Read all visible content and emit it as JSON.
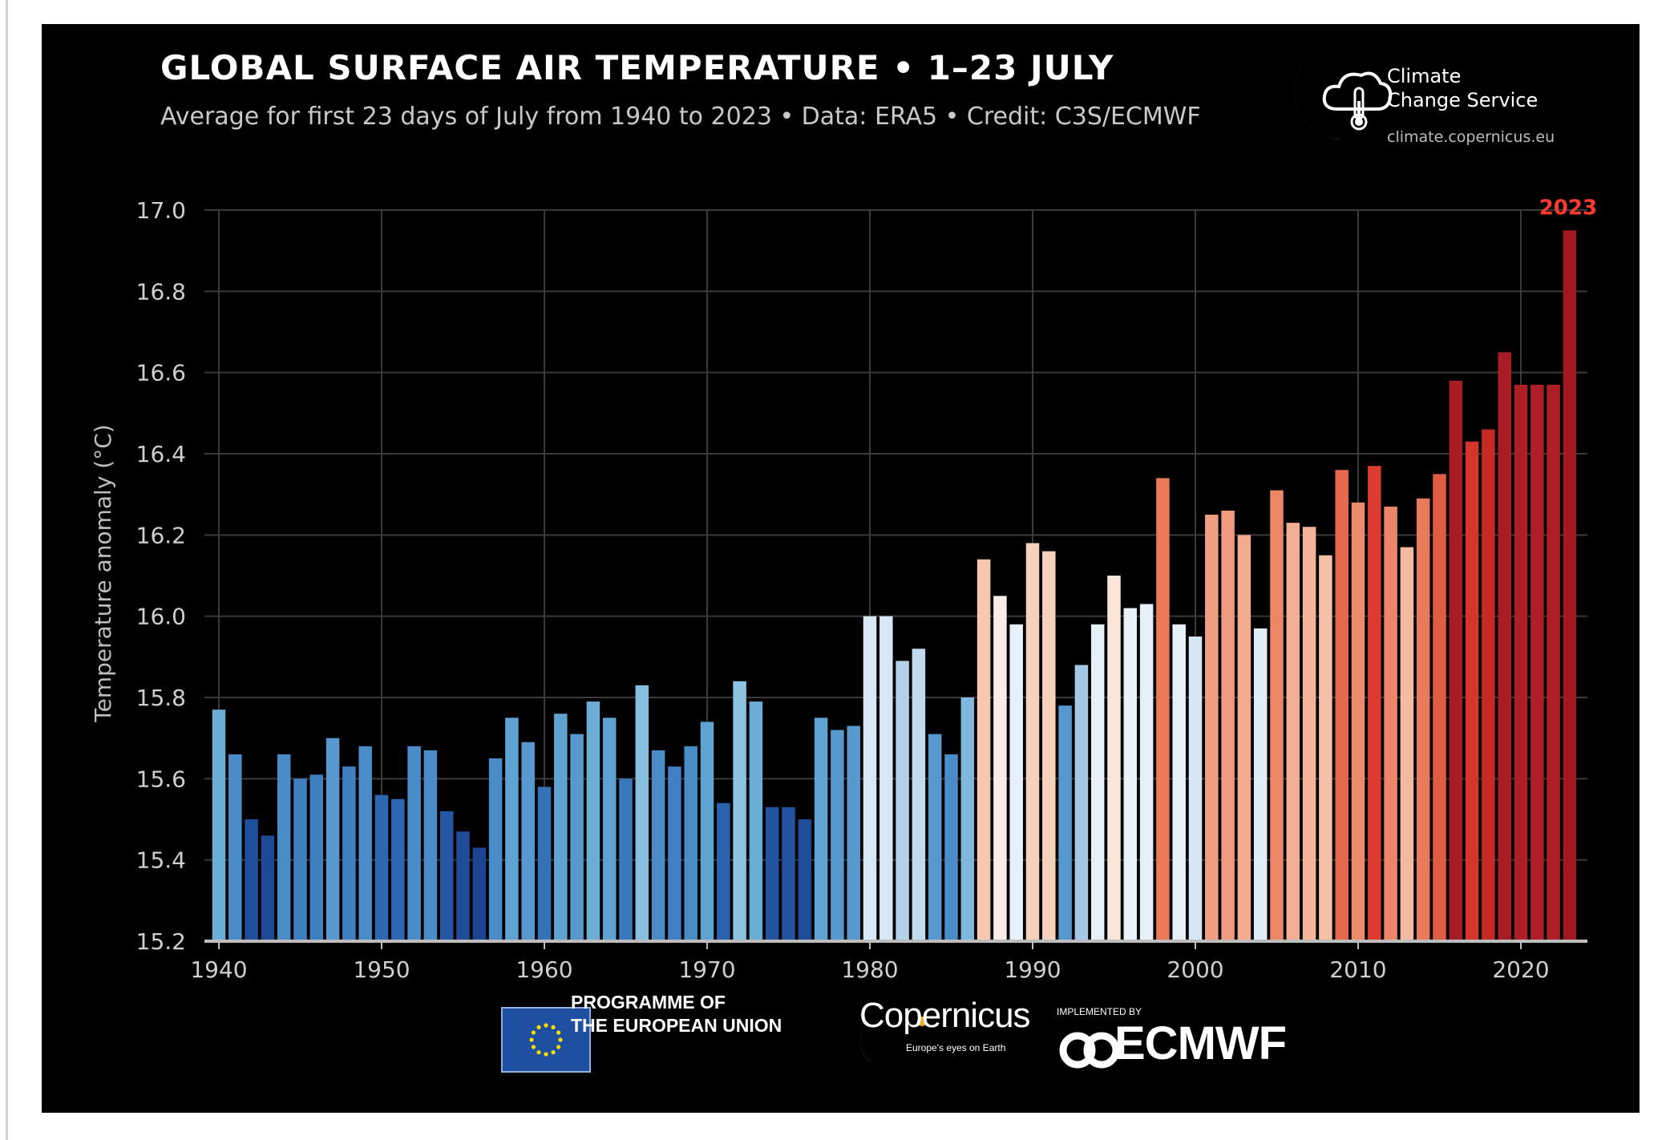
{
  "header": {
    "title": "GLOBAL SURFACE AIR TEMPERATURE • 1–23 JULY",
    "subtitle": "Average for first 23 days of July from 1940 to 2023 • Data: ERA5 • Credit: C3S/ECMWF"
  },
  "c3s": {
    "name": "Climate\nChange Service",
    "url": "climate.copernicus.eu"
  },
  "footer": {
    "eu_text": "PROGRAMME OF\nTHE EUROPEAN UNION",
    "copernicus_word": "Copernicus",
    "copernicus_tagline": "Europe's eyes on Earth",
    "ecmwf_tagline": "IMPLEMENTED BY",
    "ecmwf_word": "ECMWF"
  },
  "colors": {
    "background": "#000000",
    "grid": "#3a3a3a",
    "axis": "#bdbdbd",
    "tick_text": "#cfcfcf",
    "highlight": "#ff3b2f"
  },
  "chart_data": {
    "type": "bar",
    "title": "GLOBAL SURFACE AIR TEMPERATURE • 1–23 JULY",
    "xlabel": "",
    "ylabel": "Temperature anomaly (°C)",
    "ylim": [
      15.2,
      17.0
    ],
    "yticks": [
      "15.2",
      "15.4",
      "15.6",
      "15.8",
      "16.0",
      "16.2",
      "16.4",
      "16.6",
      "16.8",
      "17.0"
    ],
    "xticks": [
      "1940",
      "1950",
      "1960",
      "1970",
      "1980",
      "1990",
      "2000",
      "2010",
      "2020"
    ],
    "grid": true,
    "annotation": "2023",
    "years": [
      1940,
      1941,
      1942,
      1943,
      1944,
      1945,
      1946,
      1947,
      1948,
      1949,
      1950,
      1951,
      1952,
      1953,
      1954,
      1955,
      1956,
      1957,
      1958,
      1959,
      1960,
      1961,
      1962,
      1963,
      1964,
      1965,
      1966,
      1967,
      1968,
      1969,
      1970,
      1971,
      1972,
      1973,
      1974,
      1975,
      1976,
      1977,
      1978,
      1979,
      1980,
      1981,
      1982,
      1983,
      1984,
      1985,
      1986,
      1987,
      1988,
      1989,
      1990,
      1991,
      1992,
      1993,
      1994,
      1995,
      1996,
      1997,
      1998,
      1999,
      2000,
      2001,
      2002,
      2003,
      2004,
      2005,
      2006,
      2007,
      2008,
      2009,
      2010,
      2011,
      2012,
      2013,
      2014,
      2015,
      2016,
      2017,
      2018,
      2019,
      2020,
      2021,
      2022,
      2023
    ],
    "values": [
      15.77,
      15.66,
      15.5,
      15.46,
      15.66,
      15.6,
      15.61,
      15.7,
      15.63,
      15.68,
      15.56,
      15.55,
      15.68,
      15.67,
      15.52,
      15.47,
      15.43,
      15.65,
      15.75,
      15.69,
      15.58,
      15.76,
      15.71,
      15.79,
      15.75,
      15.6,
      15.83,
      15.67,
      15.63,
      15.68,
      15.74,
      15.54,
      15.84,
      15.79,
      15.53,
      15.53,
      15.5,
      15.75,
      15.72,
      15.73,
      16.0,
      16.0,
      15.89,
      15.92,
      15.71,
      15.66,
      15.8,
      16.14,
      16.05,
      15.98,
      16.18,
      16.16,
      15.78,
      15.88,
      15.98,
      16.1,
      16.02,
      16.03,
      16.34,
      15.98,
      15.95,
      16.25,
      16.26,
      16.2,
      15.97,
      16.31,
      16.23,
      16.22,
      16.15,
      16.36,
      16.28,
      16.37,
      16.27,
      16.17,
      16.29,
      16.35,
      16.58,
      16.43,
      16.46,
      16.65,
      16.57,
      16.57,
      16.57,
      16.95
    ],
    "colors": [
      "#6aaed6",
      "#4a8cc8",
      "#1e4f9c",
      "#1c4a95",
      "#4a8cc8",
      "#3f7fc0",
      "#3f7fc0",
      "#5799ce",
      "#3f7fc0",
      "#4a8cc8",
      "#2d67b2",
      "#2d67b2",
      "#4a8cc8",
      "#4a8cc8",
      "#2456a3",
      "#1f4c98",
      "#1b4590",
      "#4a8cc8",
      "#5fa3d2",
      "#5799ce",
      "#3271b8",
      "#5fa3d2",
      "#5799ce",
      "#6aaed6",
      "#5fa3d2",
      "#3879bd",
      "#86bfe0",
      "#4a8cc8",
      "#4080c2",
      "#4a8cc8",
      "#5fa3d2",
      "#2b62ad",
      "#8cc3e2",
      "#6aaed6",
      "#2353a0",
      "#2353a0",
      "#1f4c98",
      "#5fa3d2",
      "#5799ce",
      "#5799ce",
      "#d8e7f5",
      "#d8e7f5",
      "#b4d1ea",
      "#c2daef",
      "#5799ce",
      "#4a8cc8",
      "#7fb8dd",
      "#f7c8b0",
      "#f9ece5",
      "#e6f0f8",
      "#f8d1bd",
      "#f8d1bd",
      "#5799ce",
      "#a4c8e6",
      "#e6f0f8",
      "#fbe4d8",
      "#e9f1f9",
      "#e6f0f8",
      "#ea7a5a",
      "#e6f0f8",
      "#d8e7f5",
      "#ef9e80",
      "#ef9a7c",
      "#f2ab8e",
      "#e0edf7",
      "#ec8666",
      "#f2ae92",
      "#f3b49a",
      "#f6c0a6",
      "#e4694d",
      "#ed8c6d",
      "#dc3b2f",
      "#ec8666",
      "#f5bba2",
      "#e97a5c",
      "#e05c44",
      "#a81c23",
      "#d5352b",
      "#c52a26",
      "#a81c23",
      "#ad1f25",
      "#ad1f25",
      "#ad1f25",
      "#a01820"
    ]
  }
}
